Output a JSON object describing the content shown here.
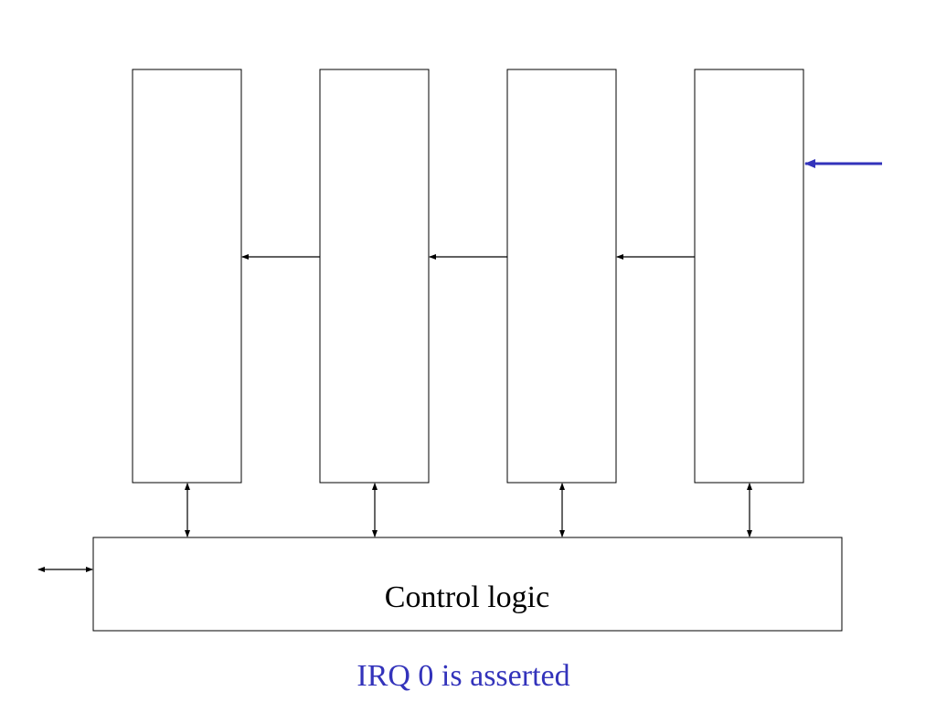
{
  "nodes": [
    {
      "label": "Control logic"
    }
  ],
  "caption": "IRQ 0 is asserted"
}
